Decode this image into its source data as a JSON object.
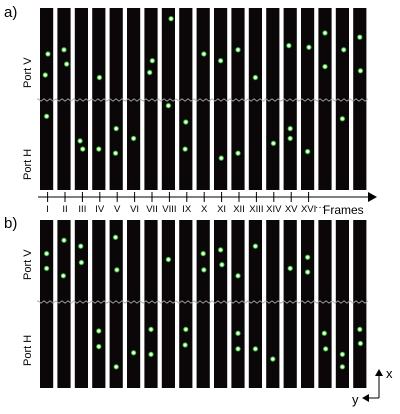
{
  "panels": [
    {
      "label": "a)",
      "port_top_label": "Port V",
      "port_bottom_label": "Port H",
      "frames": [
        {
          "spots_top": [
            [
              0.6,
              0.5
            ],
            [
              0.4,
              0.75
            ]
          ],
          "spots_bottom": [
            [
              0.5,
              0.15
            ]
          ]
        },
        {
          "spots_top": [
            [
              0.5,
              0.45
            ],
            [
              0.7,
              0.62
            ]
          ],
          "spots_bottom": []
        },
        {
          "spots_top": [],
          "spots_bottom": [
            [
              0.4,
              0.45
            ],
            [
              0.6,
              0.55
            ]
          ]
        },
        {
          "spots_top": [
            [
              0.55,
              0.78
            ]
          ],
          "spots_bottom": [
            [
              0.5,
              0.55
            ]
          ]
        },
        {
          "spots_top": [],
          "spots_bottom": [
            [
              0.5,
              0.3
            ],
            [
              0.45,
              0.6
            ]
          ]
        },
        {
          "spots_top": [],
          "spots_bottom": [
            [
              0.5,
              0.42
            ]
          ]
        },
        {
          "spots_top": [
            [
              0.6,
              0.58
            ],
            [
              0.4,
              0.72
            ]
          ],
          "spots_bottom": []
        },
        {
          "spots_top": [
            [
              0.7,
              0.08
            ]
          ],
          "spots_bottom": [
            [
              0.5,
              0.02
            ]
          ]
        },
        {
          "spots_top": [],
          "spots_bottom": [
            [
              0.5,
              0.22
            ],
            [
              0.45,
              0.55
            ]
          ]
        },
        {
          "spots_top": [
            [
              0.55,
              0.5
            ]
          ],
          "spots_bottom": []
        },
        {
          "spots_top": [
            [
              0.5,
              0.58
            ]
          ],
          "spots_bottom": [
            [
              0.55,
              0.66
            ]
          ]
        },
        {
          "spots_top": [
            [
              0.5,
              0.45
            ]
          ],
          "spots_bottom": [
            [
              0.5,
              0.6
            ]
          ]
        },
        {
          "spots_top": [
            [
              0.5,
              0.78
            ]
          ],
          "spots_bottom": []
        },
        {
          "spots_top": [],
          "spots_bottom": [
            [
              0.55,
              0.48
            ]
          ]
        },
        {
          "spots_top": [
            [
              0.4,
              0.4
            ]
          ],
          "spots_bottom": [
            [
              0.5,
              0.3
            ],
            [
              0.5,
              0.42
            ]
          ]
        },
        {
          "spots_top": [
            [
              0.6,
              0.42
            ]
          ],
          "spots_bottom": [
            [
              0.5,
              0.58
            ]
          ]
        },
        {
          "spots_top": [
            [
              0.5,
              0.25
            ],
            [
              0.5,
              0.65
            ]
          ],
          "spots_bottom": []
        },
        {
          "spots_top": [
            [
              0.6,
              0.45
            ]
          ],
          "spots_bottom": [
            [
              0.5,
              0.18
            ]
          ]
        },
        {
          "spots_top": [
            [
              0.5,
              0.3
            ],
            [
              0.55,
              0.7
            ]
          ],
          "spots_bottom": []
        }
      ]
    },
    {
      "label": "b)",
      "port_top_label": "Port V",
      "port_bottom_label": "Port H",
      "frames": [
        {
          "spots_top": [
            [
              0.5,
              0.4
            ],
            [
              0.5,
              0.6
            ]
          ],
          "spots_bottom": []
        },
        {
          "spots_top": [
            [
              0.5,
              0.22
            ],
            [
              0.45,
              0.7
            ]
          ],
          "spots_bottom": []
        },
        {
          "spots_top": [
            [
              0.45,
              0.3
            ],
            [
              0.5,
              0.52
            ]
          ],
          "spots_bottom": []
        },
        {
          "spots_top": [],
          "spots_bottom": [
            [
              0.5,
              0.32
            ],
            [
              0.5,
              0.52
            ]
          ]
        },
        {
          "spots_top": [
            [
              0.45,
              0.18
            ],
            [
              0.55,
              0.62
            ]
          ],
          "spots_bottom": [
            [
              0.5,
              0.78
            ]
          ]
        },
        {
          "spots_top": [],
          "spots_bottom": [
            [
              0.5,
              0.6
            ]
          ]
        },
        {
          "spots_top": [],
          "spots_bottom": [
            [
              0.5,
              0.3
            ],
            [
              0.5,
              0.62
            ]
          ]
        },
        {
          "spots_top": [
            [
              0.5,
              0.48
            ]
          ],
          "spots_bottom": []
        },
        {
          "spots_top": [],
          "spots_bottom": [
            [
              0.5,
              0.3
            ],
            [
              0.45,
              0.5
            ]
          ]
        },
        {
          "spots_top": [
            [
              0.5,
              0.4
            ],
            [
              0.55,
              0.62
            ]
          ],
          "spots_bottom": []
        },
        {
          "spots_top": [
            [
              0.5,
              0.35
            ],
            [
              0.6,
              0.55
            ]
          ],
          "spots_bottom": []
        },
        {
          "spots_top": [
            [
              0.5,
              0.7
            ]
          ],
          "spots_bottom": [
            [
              0.5,
              0.35
            ],
            [
              0.5,
              0.55
            ]
          ]
        },
        {
          "spots_top": [
            [
              0.5,
              0.3
            ]
          ],
          "spots_bottom": [
            [
              0.5,
              0.55
            ]
          ]
        },
        {
          "spots_top": [],
          "spots_bottom": [
            [
              0.5,
              0.68
            ]
          ]
        },
        {
          "spots_top": [
            [
              0.5,
              0.6
            ]
          ],
          "spots_bottom": []
        },
        {
          "spots_top": [
            [
              0.5,
              0.45
            ],
            [
              0.5,
              0.65
            ]
          ],
          "spots_bottom": []
        },
        {
          "spots_top": [],
          "spots_bottom": [
            [
              0.45,
              0.35
            ],
            [
              0.55,
              0.55
            ]
          ]
        },
        {
          "spots_top": [],
          "spots_bottom": [
            [
              0.5,
              0.62
            ],
            [
              0.5,
              0.78
            ]
          ]
        },
        {
          "spots_top": [],
          "spots_bottom": [
            [
              0.5,
              0.3
            ],
            [
              0.55,
              0.48
            ]
          ]
        }
      ]
    }
  ],
  "frames_axis": {
    "ticks": [
      "I",
      "II",
      "III",
      "IV",
      "V",
      "VI",
      "VII",
      "VIII",
      "IX",
      "X",
      "XI",
      "XII",
      "XIII",
      "XIV",
      "XV",
      "XVI"
    ],
    "ellipsis": "···",
    "label": "Frames"
  },
  "coord_axes": {
    "x_label": "x",
    "y_label": "y"
  },
  "colors": {
    "frame_bg": "#0b0708",
    "spot_core": "#f4ffe6",
    "spot_glow": "#36ff44",
    "separator": "#aaaaaa"
  }
}
